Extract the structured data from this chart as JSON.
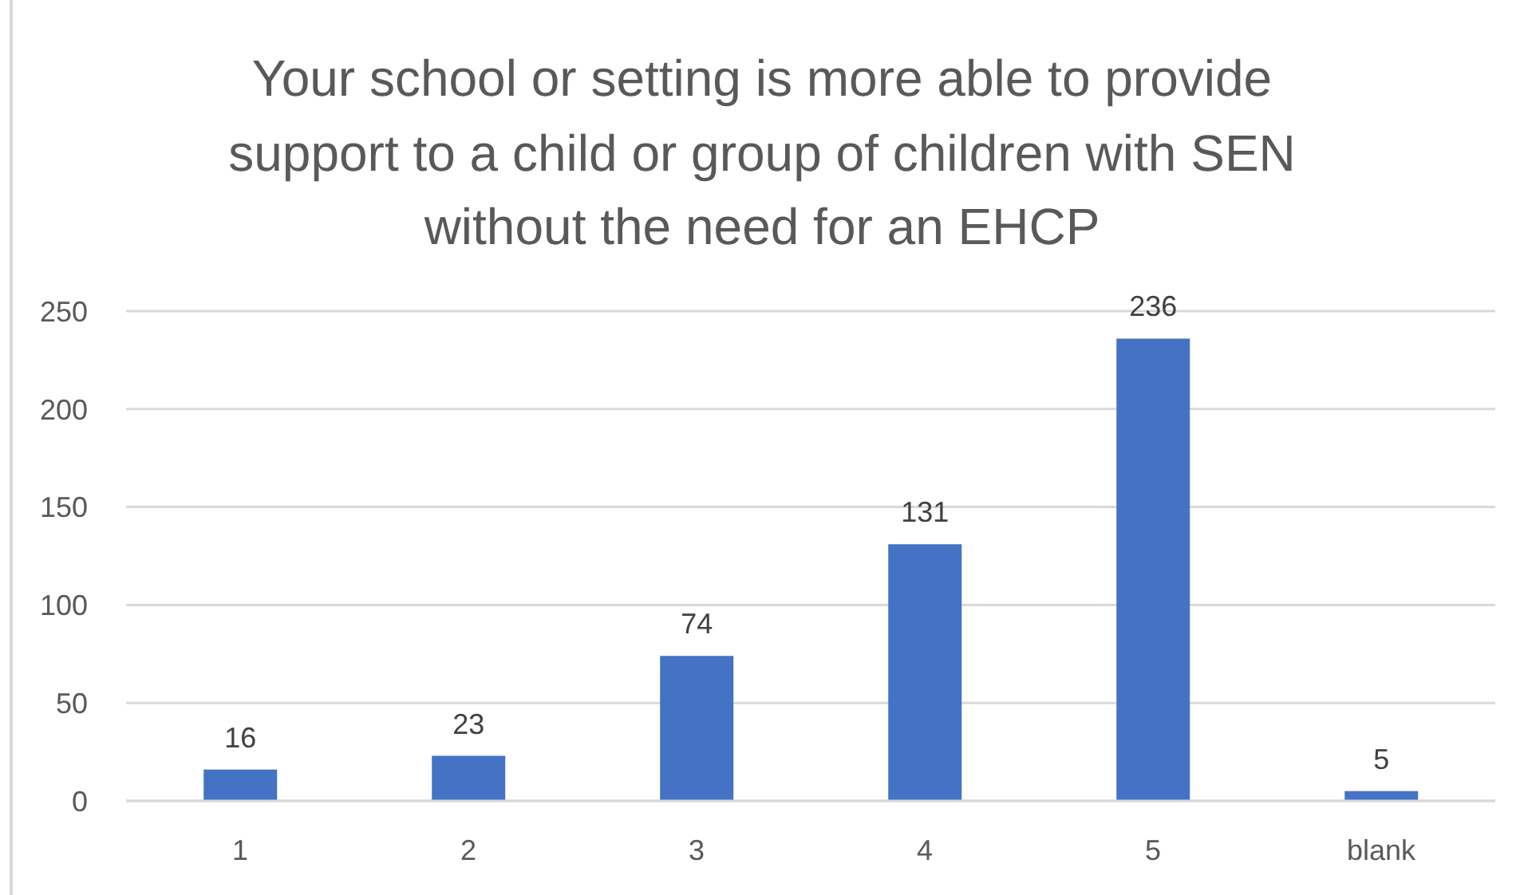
{
  "chart_data": {
    "type": "bar",
    "title": "Your school or setting is more able to provide support to a child or group of children with SEN without the need for an EHCP",
    "categories": [
      "1",
      "2",
      "3",
      "4",
      "5",
      "blank"
    ],
    "values": [
      16,
      23,
      74,
      131,
      236,
      5
    ],
    "color": "#4472c4",
    "ylim": [
      0,
      250
    ],
    "yticks": [
      0,
      50,
      100,
      150,
      200,
      250
    ],
    "grid": "y",
    "data_labels": true
  }
}
